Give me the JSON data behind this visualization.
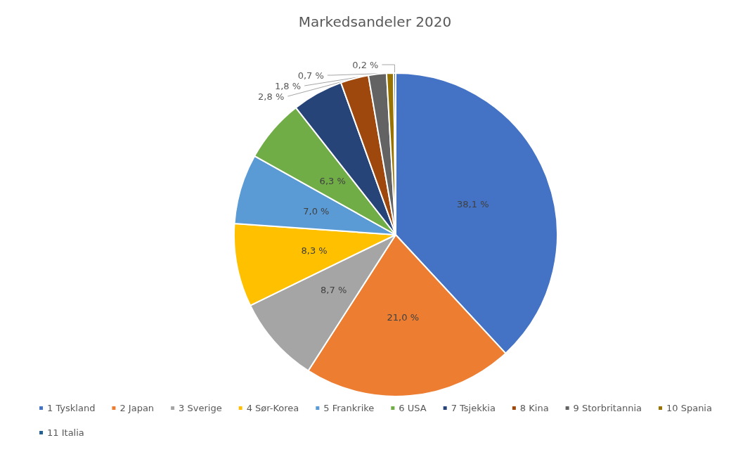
{
  "chart_data": {
    "type": "pie",
    "title": "Markedsandeler 2020",
    "categories": [
      "1 Tyskland",
      "2 Japan",
      "3 Sverige",
      "4 Sør-Korea",
      "5 Frankrike",
      "6 USA",
      "7 Tsjekkia",
      "8 Kina",
      "9 Storbritannia",
      "10 Spania",
      "11 Italia"
    ],
    "values": [
      38.1,
      21.0,
      8.7,
      8.3,
      7.0,
      6.3,
      5.1,
      2.8,
      1.8,
      0.7,
      0.2
    ],
    "value_labels": [
      "38,1 %",
      "21,0 %",
      "8,7 %",
      "8,3 %",
      "7,0 %",
      "6,3 %",
      null,
      "2,8 %",
      "1,8 %",
      "0,7 %",
      "0,2 %"
    ],
    "colors": [
      "#4472c4",
      "#ed7d31",
      "#a5a5a5",
      "#ffc000",
      "#5b9bd5",
      "#70ad47",
      "#264478",
      "#9e480e",
      "#636363",
      "#997300",
      "#255e91"
    ],
    "legend": "bottom"
  }
}
